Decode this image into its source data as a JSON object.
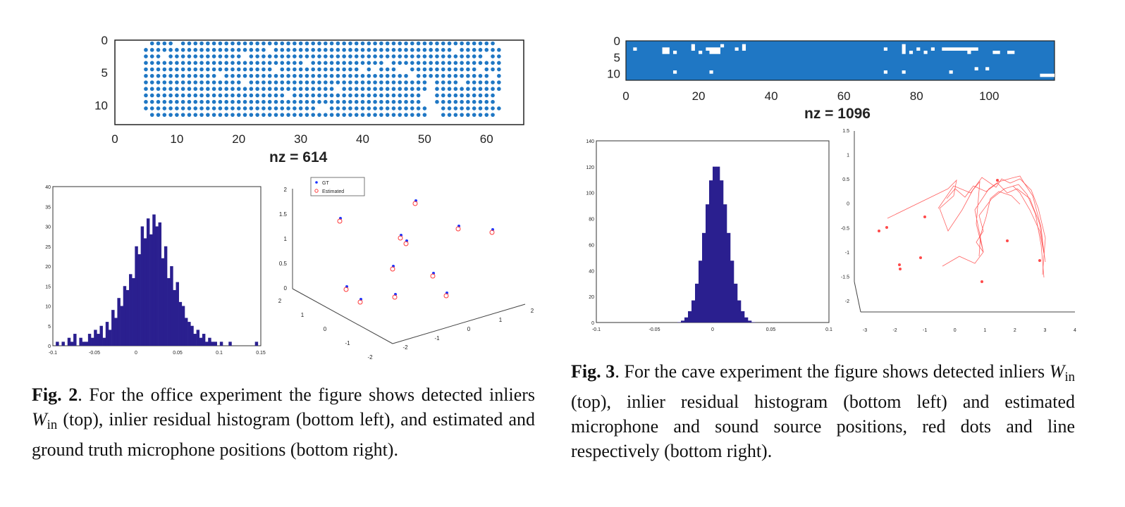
{
  "figure2": {
    "spy": {
      "rows": 13,
      "cols": 66,
      "xticks": [
        "0",
        "10",
        "20",
        "30",
        "40",
        "50",
        "60"
      ],
      "yticks": [
        "0",
        "5",
        "10"
      ],
      "nz_label": "nz = 614",
      "marker_color": "#1f77c4"
    },
    "histogram": {
      "bar_color": "#2a1f8f",
      "xticks": [
        "-0.1",
        "-0.05",
        "0",
        "0.05",
        "0.1",
        "0.15"
      ],
      "yticks": [
        "0",
        "5",
        "10",
        "15",
        "20",
        "25",
        "30",
        "35",
        "40"
      ]
    },
    "scatter3d": {
      "legend": [
        "GT",
        "Estimated"
      ],
      "gt_color": "#1a33ff",
      "est_color": "#ff3b3b",
      "zticks": [
        "0",
        "0.5",
        "1",
        "1.5",
        "2"
      ],
      "yticks": [
        "2",
        "1",
        "0",
        "-1",
        "-2"
      ],
      "xticks": [
        "-2",
        "-1",
        "0",
        "1",
        "2"
      ]
    },
    "caption": {
      "label": "Fig. 2",
      "text_a": ". For the office experiment the figure shows detected inliers ",
      "sym": "W",
      "sub": "in",
      "text_b": " (top), inlier residual histogram (bottom left), and estimated and ground truth microphone positions (bottom right)."
    }
  },
  "figure3": {
    "spy": {
      "rows": 12,
      "cols": 118,
      "xticks": [
        "0",
        "20",
        "40",
        "60",
        "80",
        "100"
      ],
      "yticks": [
        "0",
        "5",
        "10"
      ],
      "nz_label": "nz = 1096",
      "marker_color": "#1f77c4"
    },
    "histogram": {
      "bar_color": "#2a1f8f",
      "xticks": [
        "-0.1",
        "-0.05",
        "0",
        "0.05",
        "0.1"
      ],
      "yticks": [
        "0",
        "20",
        "40",
        "60",
        "80",
        "100",
        "120",
        "140"
      ]
    },
    "trajectory": {
      "color": "#ff4a4a",
      "zticks": [
        "1.5",
        "1",
        "0.5",
        "0",
        "-0.5",
        "-1",
        "-1.5",
        "-2"
      ],
      "xticks": [
        "-3",
        "-2",
        "-1",
        "0",
        "1",
        "2",
        "3",
        "4"
      ]
    },
    "caption": {
      "label": "Fig. 3",
      "text_a": ". For the cave experiment the figure shows detected inliers ",
      "sym": "W",
      "sub": "in",
      "text_b": " (top), inlier residual histogram (bottom left) and estimated microphone and sound source positions, red dots and line respectively (bottom right)."
    }
  }
}
